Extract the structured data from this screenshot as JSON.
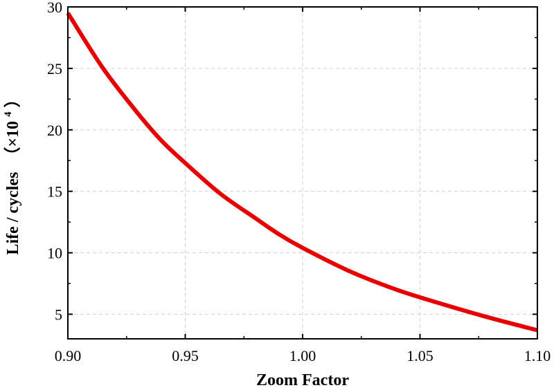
{
  "chart_data": {
    "type": "line",
    "title": "",
    "xlabel": "Zoom Factor",
    "ylabel": {
      "main": "Life / cycles",
      "multiplier_open": "（×10",
      "multiplier_exp": "4",
      "multiplier_close": "）"
    },
    "xlim": [
      0.9,
      1.1
    ],
    "ylim": [
      3.0,
      30.0
    ],
    "xticks": [
      0.9,
      0.95,
      1.0,
      1.05,
      1.1
    ],
    "xtick_labels": [
      "0.90",
      "0.95",
      "1.00",
      "1.05",
      "1.10"
    ],
    "yticks": [
      5,
      10,
      15,
      20,
      25,
      30
    ],
    "ytick_labels": [
      "5",
      "10",
      "15",
      "20",
      "25",
      "30"
    ],
    "grid": true,
    "legend": "none",
    "series": [
      {
        "color": "#e60000",
        "x": [
          0.9,
          0.915,
          0.93,
          0.94,
          0.95,
          0.965,
          0.98,
          0.99,
          1.0,
          1.02,
          1.04,
          1.06,
          1.08,
          1.1
        ],
        "y": [
          29.5,
          25.0,
          21.3,
          19.1,
          17.3,
          14.8,
          12.8,
          11.5,
          10.4,
          8.5,
          7.0,
          5.8,
          4.7,
          3.7
        ]
      }
    ]
  }
}
